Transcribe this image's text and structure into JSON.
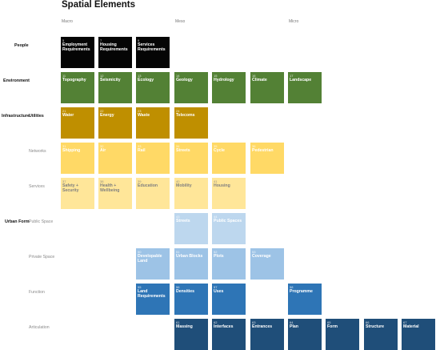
{
  "title": "Spatial Elements",
  "scale": {
    "macro": "Macro",
    "meso": "Meso",
    "micro": "Micro"
  },
  "rows": [
    {
      "id": "people",
      "category": "People",
      "sub": "",
      "color": "#050505",
      "text": "#ffffff",
      "tiles": [
        {
          "col": 0,
          "num": "5",
          "label": "Employment Requirements"
        },
        {
          "col": 1,
          "num": "7",
          "label": "Housing Requirements"
        },
        {
          "col": 2,
          "num": "9",
          "label": "Services Requirements"
        }
      ]
    },
    {
      "id": "environment",
      "category": "Environment",
      "sub": "",
      "color": "#538135",
      "text": "#ffffff",
      "tiles": [
        {
          "col": 0,
          "num": "11",
          "label": "Topography"
        },
        {
          "col": 1,
          "num": "12",
          "label": "Seismicity"
        },
        {
          "col": 2,
          "num": "13",
          "label": "Ecology"
        },
        {
          "col": 3,
          "num": "14",
          "label": "Geology"
        },
        {
          "col": 4,
          "num": "15",
          "label": "Hydrology"
        },
        {
          "col": 5,
          "num": "16",
          "label": "Climate"
        },
        {
          "col": 6,
          "num": "17",
          "label": "Landscape"
        }
      ]
    },
    {
      "id": "utilities",
      "category": "Infrastructure",
      "sub": "Utilities",
      "subBold": true,
      "color": "#bf8f00",
      "text": "#ffffff",
      "tiles": [
        {
          "col": 0,
          "num": "21",
          "label": "Water"
        },
        {
          "col": 1,
          "num": "22",
          "label": "Energy"
        },
        {
          "col": 2,
          "num": "23",
          "label": "Waste"
        },
        {
          "col": 3,
          "num": "24",
          "label": "Telecoms"
        }
      ]
    },
    {
      "id": "networks",
      "category": "",
      "sub": "Networks",
      "color": "#ffd966",
      "text": "#ffffff",
      "tiles": [
        {
          "col": 0,
          "num": "31",
          "label": "Shipping"
        },
        {
          "col": 1,
          "num": "32",
          "label": "Air"
        },
        {
          "col": 2,
          "num": "33",
          "label": "Rail"
        },
        {
          "col": 3,
          "num": "34",
          "label": "Streets"
        },
        {
          "col": 4,
          "num": "35",
          "label": "Cycle"
        },
        {
          "col": 5,
          "num": "36",
          "label": "Pedestrian"
        }
      ]
    },
    {
      "id": "services",
      "category": "",
      "sub": "Services",
      "color": "#ffe699",
      "text": "#7f7f7f",
      "tiles": [
        {
          "col": 0,
          "num": "37",
          "label": "Safety + Security"
        },
        {
          "col": 1,
          "num": "38",
          "label": "Health + Wellbeing"
        },
        {
          "col": 2,
          "num": "39",
          "label": "Education"
        },
        {
          "col": 3,
          "num": "40",
          "label": "Mobility"
        },
        {
          "col": 4,
          "num": "41",
          "label": "Housing"
        }
      ]
    },
    {
      "id": "public-space",
      "category": "Urban Form",
      "sub": "Public Space",
      "color": "#bdd7ee",
      "text": "#ffffff",
      "tiles": [
        {
          "col": 3,
          "num": "43",
          "label": "Streets"
        },
        {
          "col": 4,
          "num": "44",
          "label": "Public Spaces"
        }
      ]
    },
    {
      "id": "private-space",
      "category": "",
      "sub": "Private Space",
      "color": "#9dc3e6",
      "text": "#ffffff",
      "tiles": [
        {
          "col": 2,
          "num": "50",
          "label": "Developable Land"
        },
        {
          "col": 3,
          "num": "51",
          "label": "Urban Blocks"
        },
        {
          "col": 4,
          "num": "52",
          "label": "Plots"
        },
        {
          "col": 5,
          "num": "53",
          "label": "Coverage"
        }
      ]
    },
    {
      "id": "function",
      "category": "",
      "sub": "Function",
      "color": "#2e75b6",
      "text": "#ffffff",
      "tiles": [
        {
          "col": 2,
          "num": "55",
          "label": "Land Requirements"
        },
        {
          "col": 3,
          "num": "56",
          "label": "Densities"
        },
        {
          "col": 4,
          "num": "57",
          "label": "Uses"
        },
        {
          "col": 6,
          "num": "58",
          "label": "Programme"
        }
      ]
    },
    {
      "id": "articulation",
      "category": "",
      "sub": "Articulation",
      "color": "#1f4e79",
      "text": "#ffffff",
      "tiles": [
        {
          "col": 3,
          "num": "61",
          "label": "Massing"
        },
        {
          "col": 4,
          "num": "62",
          "label": "Interfaces"
        },
        {
          "col": 5,
          "num": "63",
          "label": "Entrances"
        },
        {
          "col": 6,
          "num": "64",
          "label": "Plan"
        },
        {
          "col": 7,
          "num": "65",
          "label": "Form"
        },
        {
          "col": 8,
          "num": "66",
          "label": "Structure"
        },
        {
          "col": 9,
          "num": "67",
          "label": "Material"
        }
      ]
    }
  ]
}
